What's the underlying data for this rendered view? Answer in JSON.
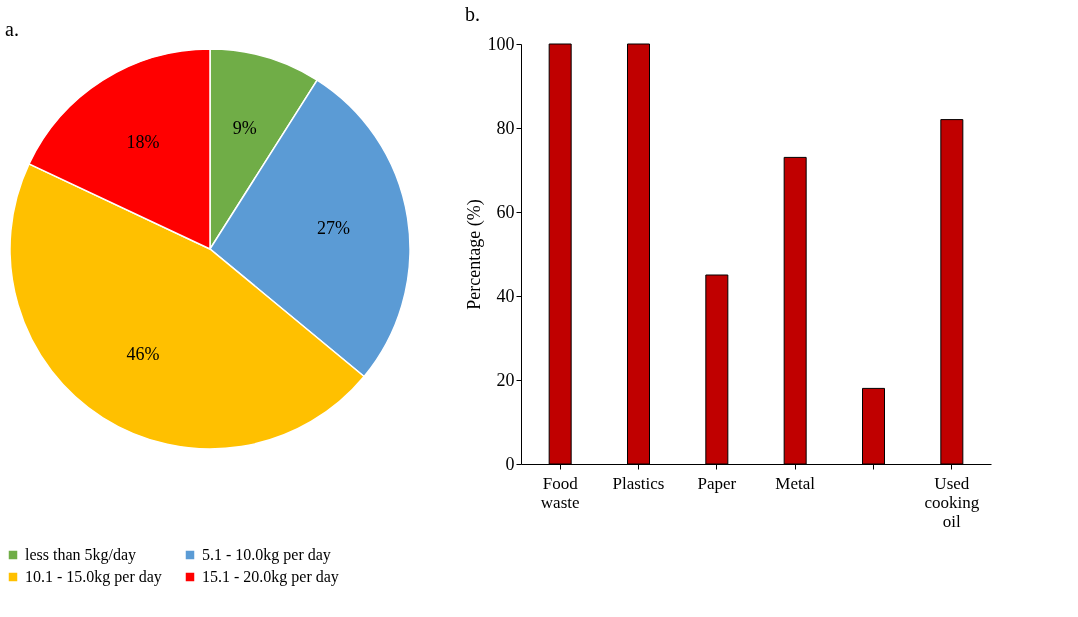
{
  "chart_data": [
    {
      "type": "pie",
      "title": "a.",
      "categories": [
        "less than 5kg/day",
        "5.1 - 10.0kg per day",
        "10.1 - 15.0kg per day",
        "15.1 - 20.0kg per day"
      ],
      "values": [
        9,
        27,
        46,
        18
      ],
      "colors": [
        "#70ad47",
        "#5b9bd5",
        "#ffc000",
        "#ff0000"
      ],
      "value_labels": [
        "9%",
        "27%",
        "46%",
        "18%"
      ],
      "legend": "bottom"
    },
    {
      "type": "bar",
      "title": "b.",
      "ylabel": "Percentage (%)",
      "categories": [
        "Food waste",
        "Plastics",
        "Paper",
        "Metal",
        null,
        "Used cooking oil"
      ],
      "values": [
        100,
        100,
        45,
        73,
        18,
        82
      ],
      "color": "#c00000",
      "ylim": [
        0,
        100
      ],
      "yticks": [
        0,
        20,
        40,
        60,
        80,
        100
      ],
      "grid": false
    }
  ]
}
